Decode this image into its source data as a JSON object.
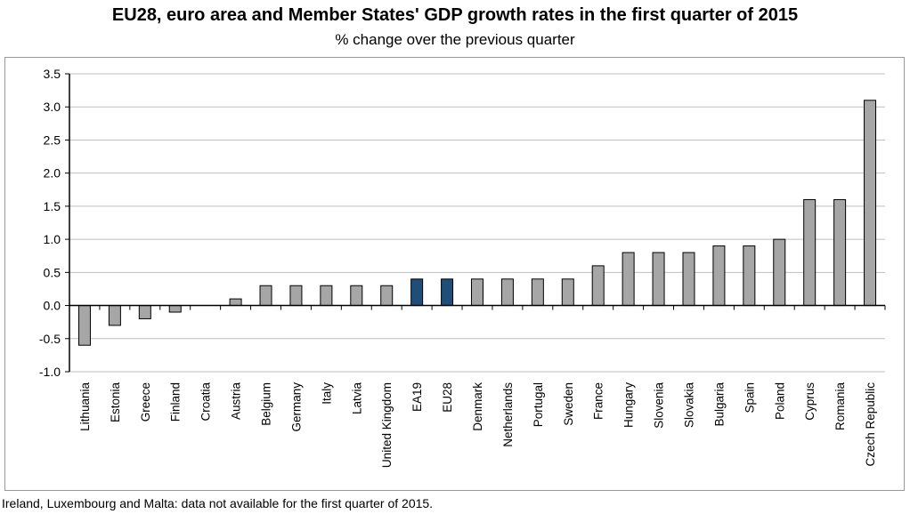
{
  "chart_data": {
    "type": "bar",
    "title": "EU28, euro area and Member States' GDP growth rates in the first quarter of 2015",
    "subtitle": "% change over the previous quarter",
    "xlabel": "",
    "ylabel": "",
    "ylim": [
      -1.0,
      3.5
    ],
    "yticks": [
      "3.5",
      "3.0",
      "2.5",
      "2.0",
      "1.5",
      "1.0",
      "0.5",
      "0.0",
      "-0.5",
      "-1.0"
    ],
    "grid": true,
    "legend": "none",
    "categories": [
      "Lithuania",
      "Estonia",
      "Greece",
      "Finland",
      "Croatia",
      "Austria",
      "Belgium",
      "Germany",
      "Italy",
      "Latvia",
      "United Kingdom",
      "EA19",
      "EU28",
      "Denmark",
      "Netherlands",
      "Portugal",
      "Sweden",
      "France",
      "Hungary",
      "Slovenia",
      "Slovakia",
      "Bulgaria",
      "Spain",
      "Poland",
      "Cyprus",
      "Romania",
      "Czech Republic"
    ],
    "values": [
      -0.6,
      -0.3,
      -0.2,
      -0.1,
      0.0,
      0.1,
      0.3,
      0.3,
      0.3,
      0.3,
      0.3,
      0.4,
      0.4,
      0.4,
      0.4,
      0.4,
      0.4,
      0.6,
      0.8,
      0.8,
      0.8,
      0.9,
      0.9,
      1.0,
      1.6,
      1.6,
      3.1
    ],
    "highlighted": [
      "EA19",
      "EU28"
    ],
    "colors": {
      "bar": "#a6a6a6",
      "highlight": "#1f4e79",
      "bar_stroke": "#000000",
      "grid": "#bfbfbf"
    }
  },
  "footnote": "Ireland, Luxembourg and Malta: data not available for the first quarter of 2015."
}
